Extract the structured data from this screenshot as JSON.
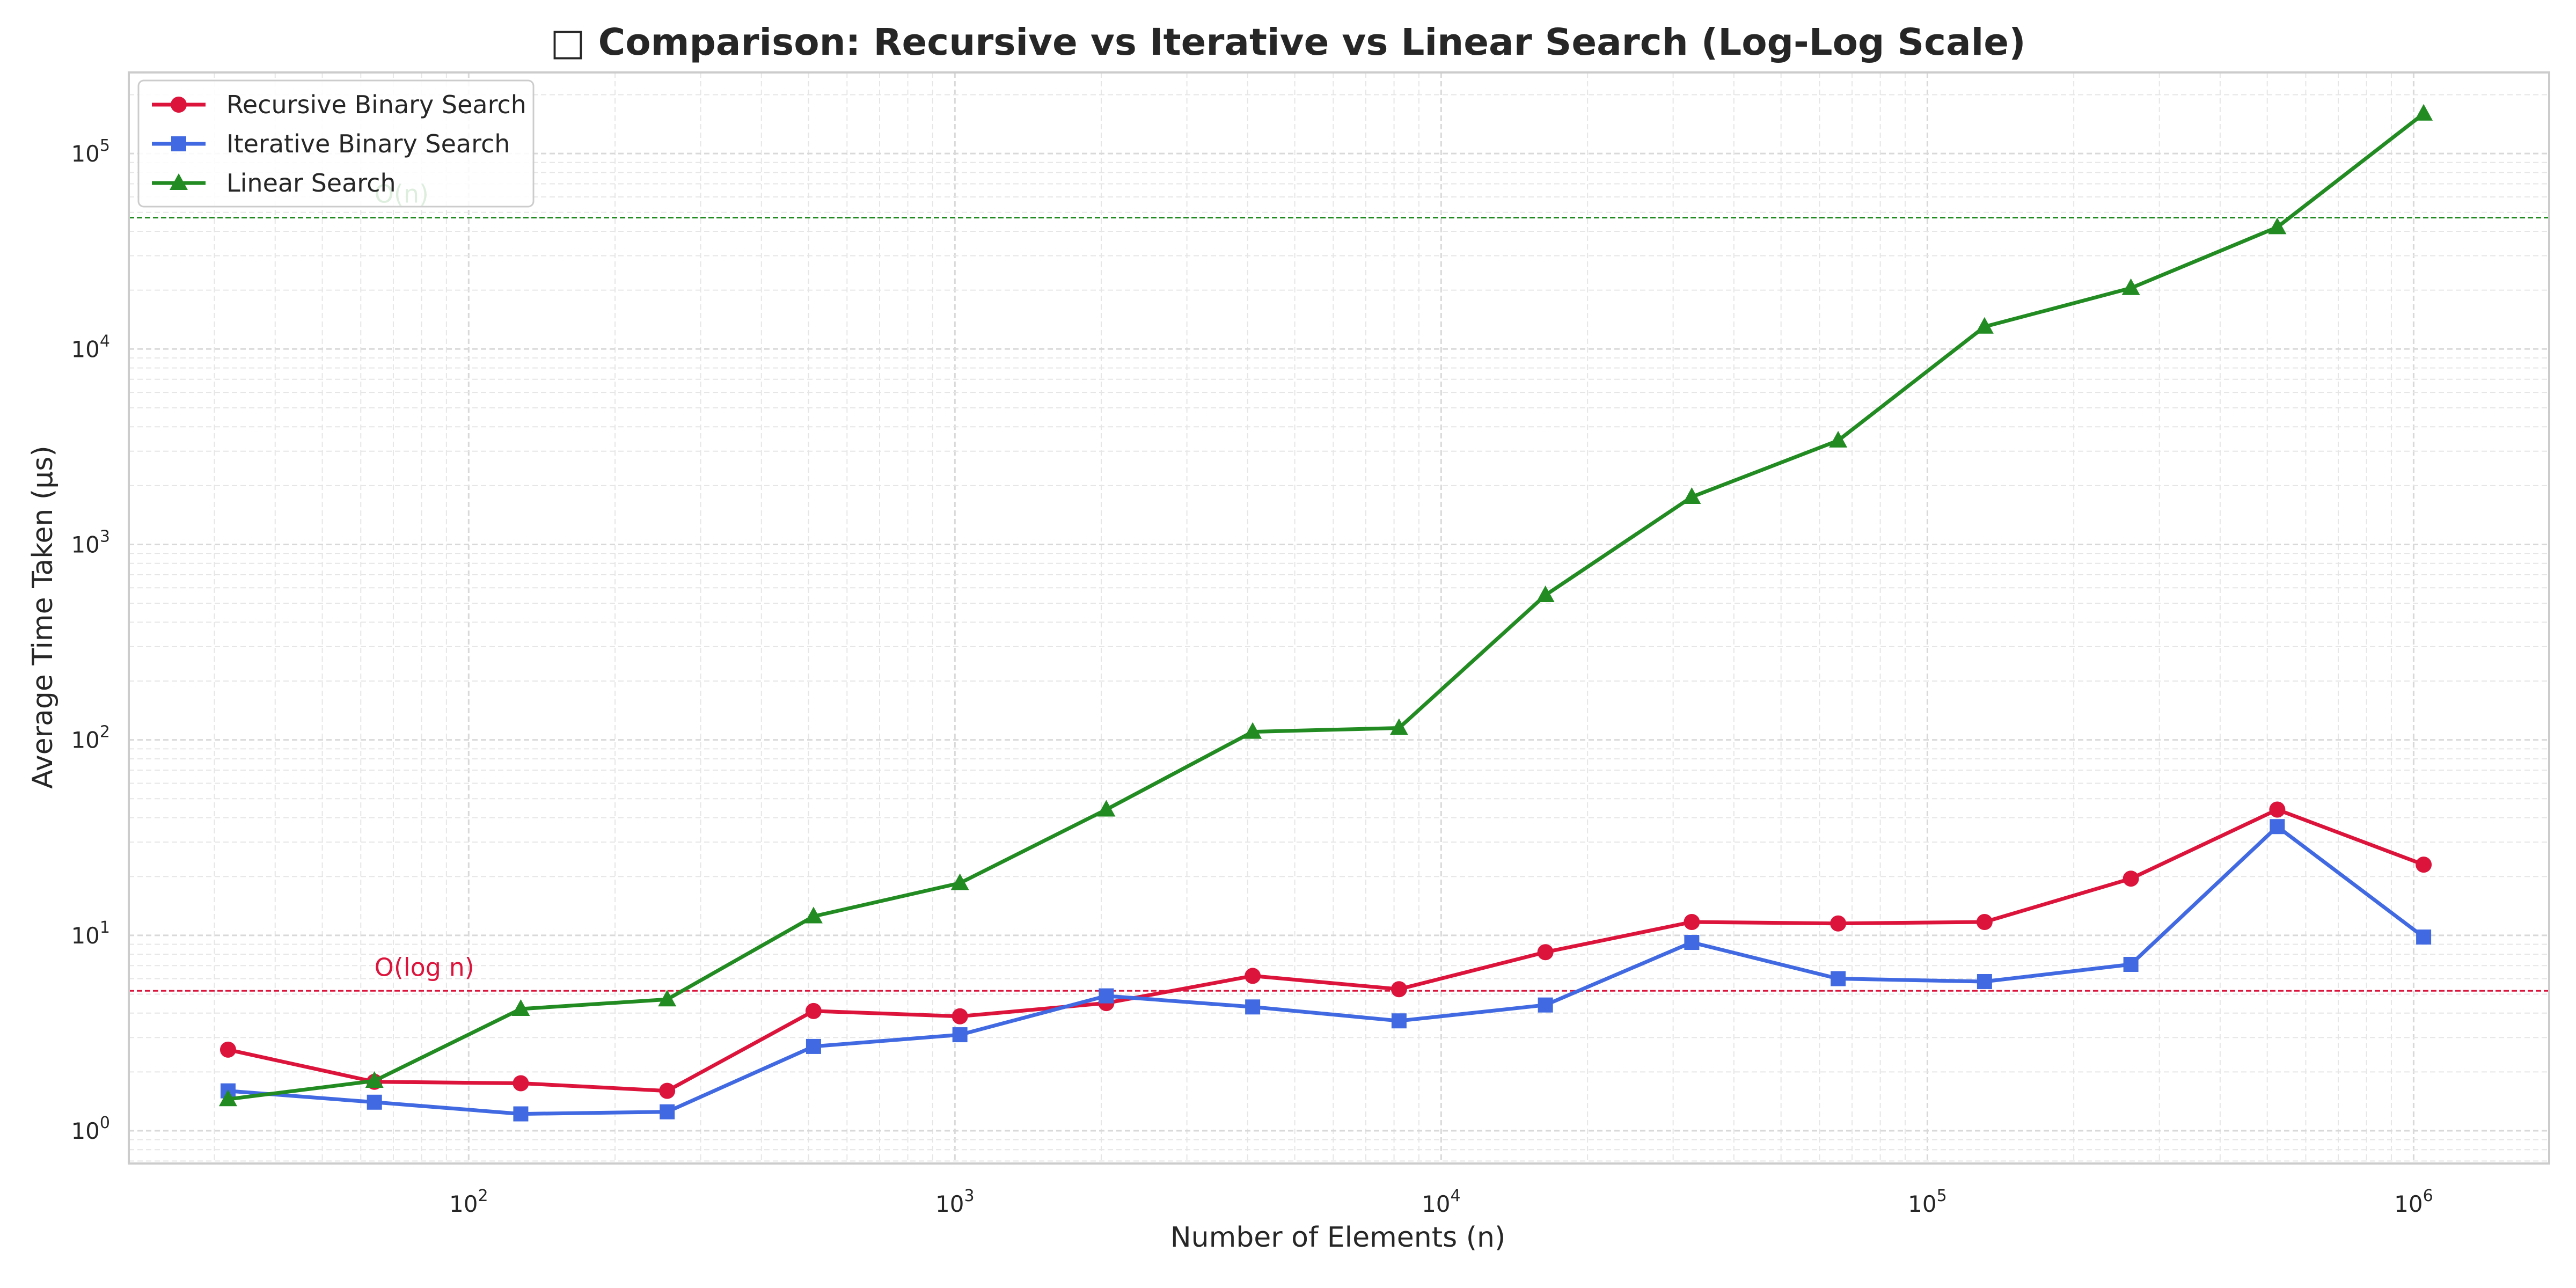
{
  "chart_data": {
    "type": "line",
    "title": "□ Comparison: Recursive vs Iterative vs Linear Search (Log-Log Scale)",
    "xlabel": "Number of Elements (n)",
    "ylabel": "Average Time Taken (µs)",
    "xscale": "log",
    "yscale": "log",
    "xlim": [
      20,
      1900000
    ],
    "ylim": [
      0.68,
      260000
    ],
    "grid": true,
    "legend_position": "top-left",
    "x": [
      32,
      64,
      128,
      256,
      512,
      1024,
      2048,
      4096,
      8192,
      16384,
      32768,
      65536,
      131072,
      262144,
      524288,
      1048576
    ],
    "x_ticks": [
      {
        "base": "10",
        "exp": "2",
        "value": 100
      },
      {
        "base": "10",
        "exp": "3",
        "value": 1000
      },
      {
        "base": "10",
        "exp": "4",
        "value": 10000
      },
      {
        "base": "10",
        "exp": "5",
        "value": 100000
      },
      {
        "base": "10",
        "exp": "6",
        "value": 1000000
      }
    ],
    "y_ticks": [
      {
        "base": "10",
        "exp": "0",
        "value": 1
      },
      {
        "base": "10",
        "exp": "1",
        "value": 10
      },
      {
        "base": "10",
        "exp": "2",
        "value": 100
      },
      {
        "base": "10",
        "exp": "3",
        "value": 1000
      },
      {
        "base": "10",
        "exp": "4",
        "value": 10000
      },
      {
        "base": "10",
        "exp": "5",
        "value": 100000
      }
    ],
    "series": [
      {
        "name": "Recursive Binary Search",
        "color": "#dc143c",
        "marker": "circle",
        "values": [
          2.6,
          1.78,
          1.75,
          1.6,
          4.1,
          3.85,
          4.5,
          6.2,
          5.3,
          8.2,
          11.7,
          11.5,
          11.7,
          19.5,
          44,
          23
        ]
      },
      {
        "name": "Iterative Binary Search",
        "color": "#4169e1",
        "marker": "square",
        "values": [
          1.6,
          1.4,
          1.22,
          1.25,
          2.7,
          3.1,
          4.9,
          4.3,
          3.65,
          4.4,
          9.2,
          6.0,
          5.8,
          7.1,
          36,
          9.8
        ]
      },
      {
        "name": "Linear Search",
        "color": "#228b22",
        "marker": "triangle",
        "values": [
          1.45,
          1.8,
          4.2,
          4.7,
          12.5,
          18.5,
          44,
          110,
          115,
          550,
          1750,
          3400,
          13000,
          20500,
          42000,
          160000
        ]
      }
    ],
    "reference_lines": [
      {
        "label": "O(n)",
        "y": 47000,
        "color": "#228b22",
        "label_x": 64
      },
      {
        "label": "O(log n)",
        "y": 5.2,
        "color": "#dc143c",
        "label_x": 64
      }
    ]
  }
}
